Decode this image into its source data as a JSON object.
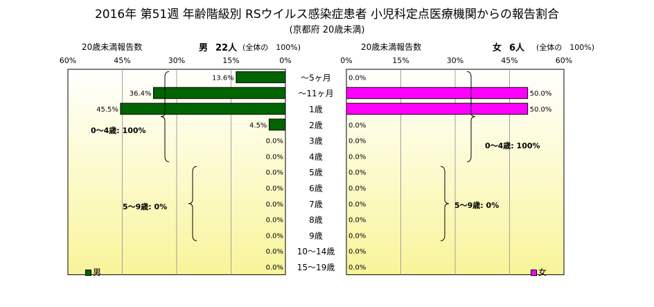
{
  "title": "2016年 第51週 年齢階級別 RSウイルス感染症患者 小児科定点医療機関からの報告割合",
  "subtitle": "(京都府 20歳未満)",
  "left_header": {
    "caption": "20歳未満報告数",
    "sex": "男",
    "count": "22人",
    "note": "(全体の　100%)"
  },
  "right_header": {
    "caption": "20歳未満報告数",
    "sex": "女",
    "count": "6人",
    "note": "(全体の　100%)"
  },
  "chart_data": [
    {
      "type": "bar",
      "orientation": "horizontal",
      "direction": "leftward",
      "categories": [
        "～5ヶ月",
        "～11ヶ月",
        "1歳",
        "2歳",
        "3歳",
        "4歳",
        "5歳",
        "6歳",
        "7歳",
        "8歳",
        "9歳",
        "10～14歳",
        "15～19歳"
      ],
      "series": [
        {
          "name": "男",
          "color": "#006400",
          "values": [
            13.6,
            36.4,
            45.5,
            4.5,
            0.0,
            0.0,
            0.0,
            0.0,
            0.0,
            0.0,
            0.0,
            0.0,
            0.0
          ],
          "labels": [
            "13.6%",
            "36.4%",
            "45.5%",
            "4.5%",
            "0.0%",
            "0.0%",
            "0.0%",
            "0.0%",
            "0.0%",
            "0.0%",
            "0.0%",
            "0.0%",
            "0.0%"
          ]
        }
      ],
      "xlim": [
        0,
        60
      ],
      "ticks": [
        "60%",
        "45%",
        "30%",
        "15%",
        "0%"
      ],
      "group_annotations": [
        "0～4歳: 100%",
        "5～9歳: 0%"
      ],
      "legend": "bottom-left"
    },
    {
      "type": "bar",
      "orientation": "horizontal",
      "direction": "rightward",
      "categories": [
        "～5ヶ月",
        "～11ヶ月",
        "1歳",
        "2歳",
        "3歳",
        "4歳",
        "5歳",
        "6歳",
        "7歳",
        "8歳",
        "9歳",
        "10～14歳",
        "15～19歳"
      ],
      "series": [
        {
          "name": "女",
          "color": "#ff00ff",
          "values": [
            0.0,
            50.0,
            50.0,
            0.0,
            0.0,
            0.0,
            0.0,
            0.0,
            0.0,
            0.0,
            0.0,
            0.0,
            0.0
          ],
          "labels": [
            "0.0%",
            "50.0%",
            "50.0%",
            "0.0%",
            "0.0%",
            "0.0%",
            "0.0%",
            "0.0%",
            "0.0%",
            "0.0%",
            "0.0%",
            "0.0%",
            "0.0%"
          ]
        }
      ],
      "xlim": [
        0,
        60
      ],
      "ticks": [
        "0%",
        "15%",
        "30%",
        "45%",
        "60%"
      ],
      "group_annotations": [
        "0～4歳: 100%",
        "5～9歳: 0%"
      ],
      "legend": "bottom-right"
    }
  ]
}
